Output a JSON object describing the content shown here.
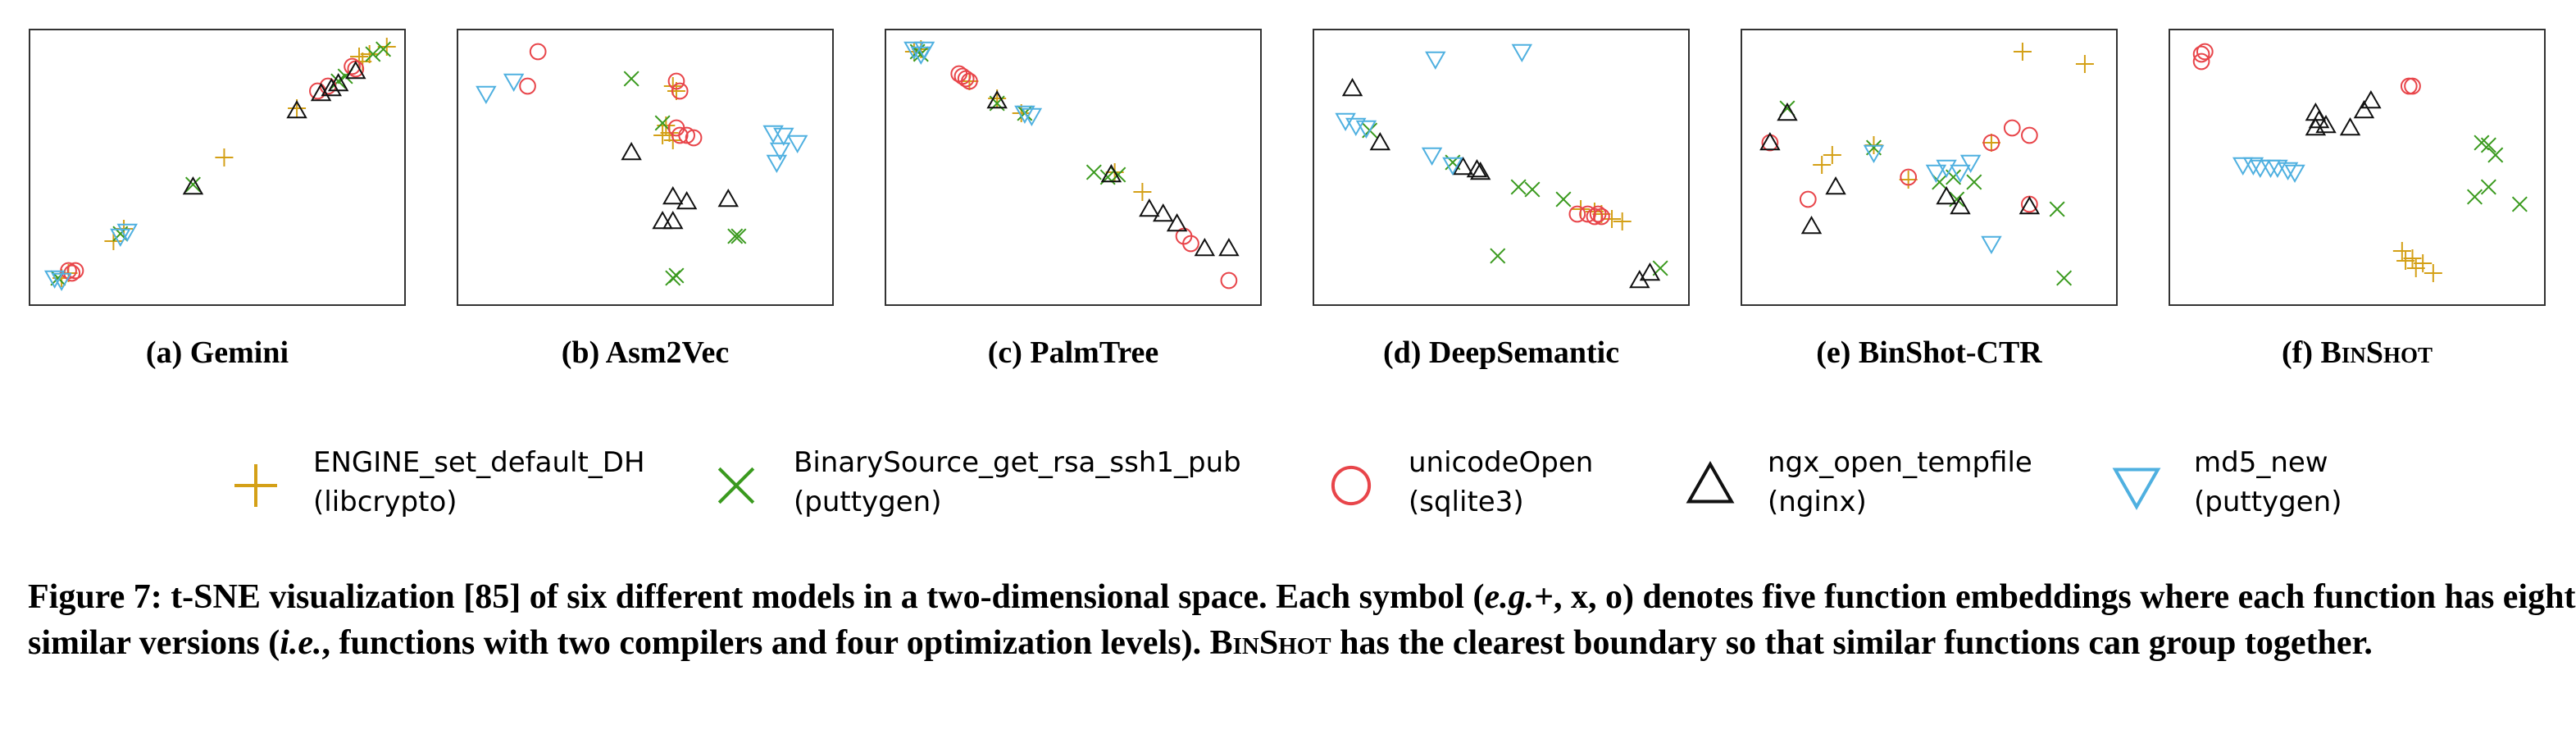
{
  "figure": {
    "caption_parts": [
      {
        "t": "Figure 7: t-SNE visualization [85] of six different models in a two-dimensional space. Each symbol (",
        "s": ""
      },
      {
        "t": "e.g.",
        "s": "i"
      },
      {
        "t": "+, x, o) denotes five function embeddings where each function has eight similar versions (",
        "s": ""
      },
      {
        "t": "i.e.",
        "s": "i"
      },
      {
        "t": ", functions with two compilers and four optimization levels). ",
        "s": ""
      },
      {
        "t": "BinShot",
        "s": "sc"
      },
      {
        "t": " has the clearest boundary so that similar functions can group together.",
        "s": ""
      }
    ]
  },
  "legend": [
    {
      "key": "engine",
      "label_line1": "ENGINE_set_default_DH",
      "label_line2": "(libcrypto)",
      "marker": "plus",
      "color": "#d4a017"
    },
    {
      "key": "binsrc",
      "label_line1": "BinarySource_get_rsa_ssh1_pub",
      "label_line2": "(puttygen)",
      "marker": "x",
      "color": "#3a9a1e"
    },
    {
      "key": "unicode",
      "label_line1": "unicodeOpen",
      "label_line2": "(sqlite3)",
      "marker": "circle",
      "color": "#e8454a"
    },
    {
      "key": "ngx",
      "label_line1": "ngx_open_tempfile",
      "label_line2": "(nginx)",
      "marker": "triangle-up",
      "color": "#111111"
    },
    {
      "key": "md5",
      "label_line1": "md5_new",
      "label_line2": "(puttygen)",
      "marker": "triangle-down",
      "color": "#4fb0e0"
    }
  ],
  "chart_data": [
    {
      "type": "scatter",
      "title": "(a) Gemini",
      "title_sc": "",
      "xlim": [
        0,
        1
      ],
      "ylim": [
        0,
        1
      ],
      "series": [
        {
          "name": "ENGINE_set_default_DH",
          "points": [
            [
              0.05,
              0.05
            ],
            [
              0.07,
              0.07
            ],
            [
              0.2,
              0.2
            ],
            [
              0.23,
              0.25
            ],
            [
              0.52,
              0.54
            ],
            [
              0.73,
              0.74
            ],
            [
              0.92,
              0.93
            ],
            [
              0.94,
              0.96
            ],
            [
              0.91,
              0.95
            ],
            [
              0.99,
              0.99
            ]
          ]
        },
        {
          "name": "BinarySource_get_rsa_ssh1_pub",
          "points": [
            [
              0.04,
              0.05
            ],
            [
              0.22,
              0.23
            ],
            [
              0.43,
              0.43
            ],
            [
              0.87,
              0.87
            ],
            [
              0.95,
              0.96
            ],
            [
              0.98,
              0.98
            ],
            [
              0.85,
              0.85
            ]
          ]
        },
        {
          "name": "unicodeOpen",
          "points": [
            [
              0.07,
              0.08
            ],
            [
              0.09,
              0.08
            ],
            [
              0.08,
              0.07
            ],
            [
              0.79,
              0.81
            ],
            [
              0.82,
              0.83
            ],
            [
              0.89,
              0.91
            ],
            [
              0.9,
              0.9
            ]
          ]
        },
        {
          "name": "ngx_open_tempfile",
          "points": [
            [
              0.43,
              0.42
            ],
            [
              0.73,
              0.73
            ],
            [
              0.8,
              0.8
            ],
            [
              0.83,
              0.82
            ],
            [
              0.85,
              0.84
            ],
            [
              0.9,
              0.89
            ]
          ]
        },
        {
          "name": "md5_new",
          "points": [
            [
              0.05,
              0.04
            ],
            [
              0.22,
              0.22
            ],
            [
              0.24,
              0.24
            ],
            [
              0.03,
              0.05
            ]
          ]
        }
      ]
    },
    {
      "type": "scatter",
      "title": "(b) Asm2Vec",
      "title_sc": "",
      "xlim": [
        0,
        1
      ],
      "ylim": [
        0,
        1
      ],
      "series": [
        {
          "name": "ENGINE_set_default_DH",
          "points": [
            [
              0.58,
              0.83
            ],
            [
              0.59,
              0.81
            ],
            [
              0.57,
              0.64
            ],
            [
              0.55,
              0.63
            ],
            [
              0.56,
              0.67
            ],
            [
              0.58,
              0.61
            ]
          ]
        },
        {
          "name": "BinarySource_get_rsa_ssh1_pub",
          "points": [
            [
              0.46,
              0.86
            ],
            [
              0.55,
              0.68
            ],
            [
              0.76,
              0.22
            ],
            [
              0.77,
              0.22
            ],
            [
              0.58,
              0.05
            ],
            [
              0.59,
              0.06
            ]
          ]
        },
        {
          "name": "unicodeOpen",
          "points": [
            [
              0.19,
              0.97
            ],
            [
              0.16,
              0.83
            ],
            [
              0.59,
              0.85
            ],
            [
              0.6,
              0.81
            ],
            [
              0.59,
              0.66
            ],
            [
              0.62,
              0.63
            ],
            [
              0.64,
              0.62
            ],
            [
              0.6,
              0.63
            ]
          ]
        },
        {
          "name": "ngx_open_tempfile",
          "points": [
            [
              0.46,
              0.56
            ],
            [
              0.58,
              0.38
            ],
            [
              0.62,
              0.36
            ],
            [
              0.74,
              0.37
            ],
            [
              0.55,
              0.28
            ],
            [
              0.58,
              0.28
            ]
          ]
        },
        {
          "name": "md5_new",
          "points": [
            [
              0.04,
              0.8
            ],
            [
              0.12,
              0.85
            ],
            [
              0.87,
              0.64
            ],
            [
              0.9,
              0.63
            ],
            [
              0.94,
              0.6
            ],
            [
              0.88,
              0.52
            ],
            [
              0.89,
              0.57
            ]
          ]
        }
      ]
    },
    {
      "type": "scatter",
      "title": "(c) PalmTree",
      "title_sc": "",
      "xlim": [
        0,
        1
      ],
      "ylim": [
        0,
        1
      ],
      "series": [
        {
          "name": "ENGINE_set_default_DH",
          "points": [
            [
              0.04,
              0.97
            ],
            [
              0.06,
              0.98
            ],
            [
              0.2,
              0.85
            ],
            [
              0.28,
              0.78
            ],
            [
              0.35,
              0.72
            ],
            [
              0.62,
              0.48
            ],
            [
              0.7,
              0.4
            ]
          ]
        },
        {
          "name": "BinarySource_get_rsa_ssh1_pub",
          "points": [
            [
              0.05,
              0.97
            ],
            [
              0.06,
              0.96
            ],
            [
              0.28,
              0.76
            ],
            [
              0.36,
              0.72
            ],
            [
              0.56,
              0.48
            ],
            [
              0.6,
              0.46
            ],
            [
              0.63,
              0.47
            ]
          ]
        },
        {
          "name": "unicodeOpen",
          "points": [
            [
              0.17,
              0.88
            ],
            [
              0.18,
              0.87
            ],
            [
              0.19,
              0.86
            ],
            [
              0.2,
              0.85
            ],
            [
              0.82,
              0.22
            ],
            [
              0.84,
              0.19
            ],
            [
              0.95,
              0.04
            ]
          ]
        },
        {
          "name": "ngx_open_tempfile",
          "points": [
            [
              0.28,
              0.77
            ],
            [
              0.61,
              0.47
            ],
            [
              0.72,
              0.33
            ],
            [
              0.76,
              0.31
            ],
            [
              0.8,
              0.27
            ],
            [
              0.88,
              0.17
            ],
            [
              0.95,
              0.17
            ]
          ]
        },
        {
          "name": "md5_new",
          "points": [
            [
              0.04,
              0.98
            ],
            [
              0.07,
              0.98
            ],
            [
              0.06,
              0.96
            ],
            [
              0.36,
              0.72
            ],
            [
              0.38,
              0.71
            ]
          ]
        }
      ]
    },
    {
      "type": "scatter",
      "title": "(d) DeepSemantic",
      "title_sc": "",
      "xlim": [
        0,
        1
      ],
      "ylim": [
        0,
        1
      ],
      "series": [
        {
          "name": "ENGINE_set_default_DH",
          "points": [
            [
              0.73,
              0.33
            ],
            [
              0.77,
              0.32
            ],
            [
              0.79,
              0.31
            ],
            [
              0.82,
              0.29
            ],
            [
              0.85,
              0.28
            ]
          ]
        },
        {
          "name": "BinarySource_get_rsa_ssh1_pub",
          "points": [
            [
              0.12,
              0.65
            ],
            [
              0.36,
              0.52
            ],
            [
              0.55,
              0.42
            ],
            [
              0.59,
              0.41
            ],
            [
              0.68,
              0.37
            ],
            [
              0.49,
              0.14
            ],
            [
              0.96,
              0.09
            ]
          ]
        },
        {
          "name": "unicodeOpen",
          "points": [
            [
              0.72,
              0.31
            ],
            [
              0.75,
              0.31
            ],
            [
              0.78,
              0.31
            ],
            [
              0.79,
              0.3
            ],
            [
              0.77,
              0.3
            ]
          ]
        },
        {
          "name": "ngx_open_tempfile",
          "points": [
            [
              0.07,
              0.82
            ],
            [
              0.15,
              0.6
            ],
            [
              0.39,
              0.5
            ],
            [
              0.43,
              0.49
            ],
            [
              0.44,
              0.48
            ],
            [
              0.9,
              0.04
            ],
            [
              0.93,
              0.07
            ]
          ]
        },
        {
          "name": "md5_new",
          "points": [
            [
              0.31,
              0.94
            ],
            [
              0.56,
              0.97
            ],
            [
              0.05,
              0.69
            ],
            [
              0.08,
              0.67
            ],
            [
              0.11,
              0.66
            ],
            [
              0.3,
              0.55
            ],
            [
              0.36,
              0.51
            ]
          ]
        }
      ]
    },
    {
      "type": "scatter",
      "title": "(e) BinShot-CTR",
      "title_sc": "",
      "xlim": [
        0,
        1
      ],
      "ylim": [
        0,
        1
      ],
      "series": [
        {
          "name": "ENGINE_set_default_DH",
          "points": [
            [
              0.77,
              0.97
            ],
            [
              0.95,
              0.92
            ],
            [
              0.19,
              0.51
            ],
            [
              0.22,
              0.55
            ],
            [
              0.34,
              0.59
            ],
            [
              0.68,
              0.6
            ],
            [
              0.44,
              0.45
            ]
          ]
        },
        {
          "name": "BinarySource_get_rsa_ssh1_pub",
          "points": [
            [
              0.09,
              0.74
            ],
            [
              0.34,
              0.58
            ],
            [
              0.53,
              0.44
            ],
            [
              0.57,
              0.46
            ],
            [
              0.58,
              0.37
            ],
            [
              0.63,
              0.44
            ],
            [
              0.87,
              0.33
            ],
            [
              0.89,
              0.05
            ]
          ]
        },
        {
          "name": "unicodeOpen",
          "points": [
            [
              0.04,
              0.6
            ],
            [
              0.15,
              0.37
            ],
            [
              0.44,
              0.46
            ],
            [
              0.68,
              0.6
            ],
            [
              0.74,
              0.66
            ],
            [
              0.79,
              0.63
            ],
            [
              0.79,
              0.35
            ]
          ]
        },
        {
          "name": "ngx_open_tempfile",
          "points": [
            [
              0.04,
              0.6
            ],
            [
              0.09,
              0.72
            ],
            [
              0.23,
              0.42
            ],
            [
              0.16,
              0.26
            ],
            [
              0.55,
              0.38
            ],
            [
              0.59,
              0.34
            ],
            [
              0.79,
              0.34
            ]
          ]
        },
        {
          "name": "md5_new",
          "points": [
            [
              0.34,
              0.56
            ],
            [
              0.52,
              0.48
            ],
            [
              0.55,
              0.5
            ],
            [
              0.59,
              0.48
            ],
            [
              0.62,
              0.52
            ],
            [
              0.68,
              0.19
            ]
          ]
        }
      ]
    },
    {
      "type": "scatter",
      "title": "(f) ",
      "title_sc": "BinShot",
      "xlim": [
        0,
        1
      ],
      "ylim": [
        0,
        1
      ],
      "series": [
        {
          "name": "ENGINE_set_default_DH",
          "points": [
            [
              0.63,
              0.16
            ],
            [
              0.66,
              0.13
            ],
            [
              0.69,
              0.11
            ],
            [
              0.67,
              0.09
            ],
            [
              0.72,
              0.07
            ],
            [
              0.64,
              0.12
            ]
          ]
        },
        {
          "name": "BinarySource_get_rsa_ssh1_pub",
          "points": [
            [
              0.86,
              0.6
            ],
            [
              0.88,
              0.59
            ],
            [
              0.9,
              0.55
            ],
            [
              0.84,
              0.38
            ],
            [
              0.88,
              0.42
            ],
            [
              0.97,
              0.35
            ]
          ]
        },
        {
          "name": "unicodeOpen",
          "points": [
            [
              0.05,
              0.96
            ],
            [
              0.06,
              0.97
            ],
            [
              0.05,
              0.93
            ],
            [
              0.65,
              0.83
            ],
            [
              0.66,
              0.83
            ]
          ]
        },
        {
          "name": "ngx_open_tempfile",
          "points": [
            [
              0.38,
              0.66
            ],
            [
              0.39,
              0.69
            ],
            [
              0.38,
              0.72
            ],
            [
              0.41,
              0.67
            ],
            [
              0.48,
              0.66
            ],
            [
              0.52,
              0.73
            ],
            [
              0.54,
              0.77
            ]
          ]
        },
        {
          "name": "md5_new",
          "points": [
            [
              0.17,
              0.51
            ],
            [
              0.2,
              0.51
            ],
            [
              0.22,
              0.5
            ],
            [
              0.25,
              0.5
            ],
            [
              0.27,
              0.5
            ],
            [
              0.3,
              0.49
            ],
            [
              0.32,
              0.48
            ]
          ]
        }
      ]
    }
  ]
}
